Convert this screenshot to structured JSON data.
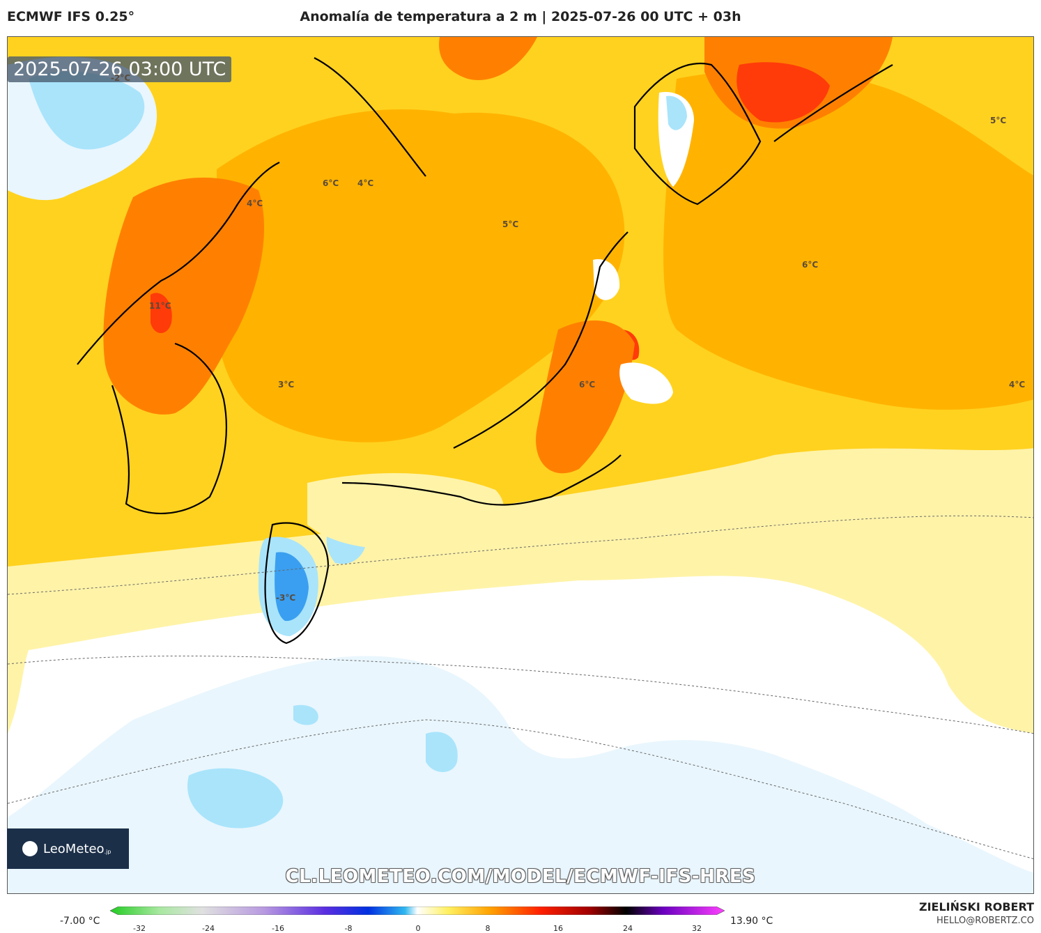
{
  "header": {
    "model": "ECMWF IFS 0.25°",
    "title": "Anomalía de temperatura a 2 m | 2025-07-26 00 UTC + 03h"
  },
  "map": {
    "valid_time": "2025-07-26 03:00 UTC",
    "labels": [
      {
        "text": "-2°C"
      },
      {
        "text": "6°C"
      },
      {
        "text": "4°C"
      },
      {
        "text": "4°C"
      },
      {
        "text": "5°C"
      },
      {
        "text": "5°C"
      },
      {
        "text": "6°C"
      },
      {
        "text": "11°C"
      },
      {
        "text": "3°C"
      },
      {
        "text": "6°C"
      },
      {
        "text": "4°C"
      },
      {
        "text": "-3°C"
      }
    ],
    "watermark": "CL.LEOMETEO.COM/MODEL/ECMWF-IFS-HRES",
    "logo_text": "LeoMeteo",
    "logo_suffix": ".jp"
  },
  "colorbar": {
    "min_label": "-7.00 °C",
    "max_label": "13.90 °C",
    "ticks": [
      "-32",
      "-24",
      "-16",
      "-8",
      "0",
      "8",
      "16",
      "24",
      "32"
    ]
  },
  "footer": {
    "author": "ZIELIŃSKI ROBERT",
    "email": "HELLO@ROBERTZ.CO"
  },
  "colors": {
    "warm_light": "#fff3a8",
    "warm_mid": "#ffd21f",
    "warm_strong": "#ffb300",
    "hot": "#ff8000",
    "very_hot": "#ff3b0a",
    "cool_light": "#e9f6fd",
    "cool_mid": "#a9e4fb",
    "cold": "#3a9ff0"
  }
}
